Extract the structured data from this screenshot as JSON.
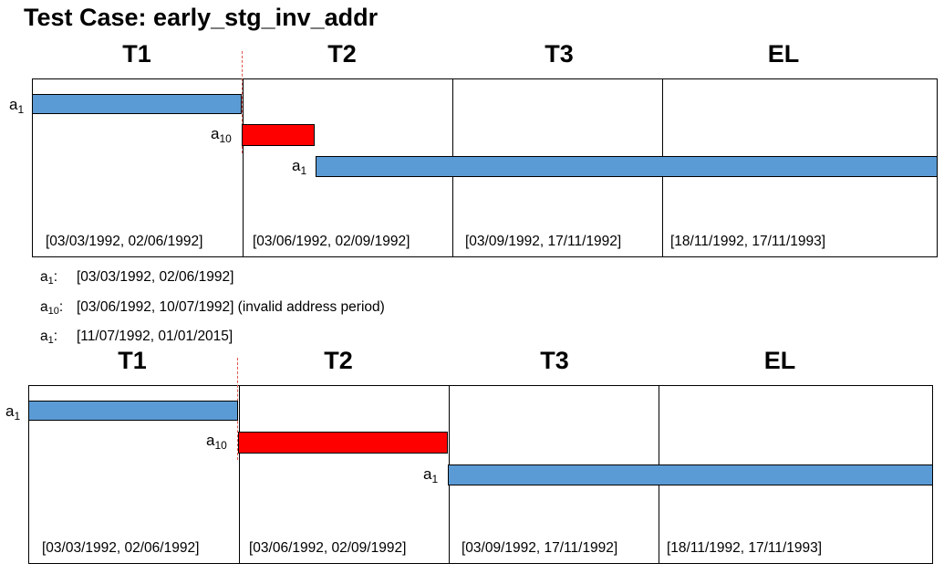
{
  "title": "Test Case: early_stg_inv_addr",
  "columns": [
    "T1",
    "T2",
    "T3",
    "EL"
  ],
  "periods": [
    "[03/03/1992, 02/06/1992]",
    "[03/06/1992, 02/09/1992]",
    "[03/09/1992, 17/11/1992]",
    "[18/11/1992, 17/11/1993]"
  ],
  "bar_labels": {
    "first_base": "a",
    "first_sub": "1",
    "second_base": "a",
    "second_sub": "10",
    "third_base": "a",
    "third_sub": "1"
  },
  "notes": [
    {
      "base": "a",
      "sub": "1",
      "text": "[03/03/1992, 02/06/1992]"
    },
    {
      "base": "a",
      "sub": "10",
      "text": "[03/06/1992, 10/07/1992] (invalid address period)"
    },
    {
      "base": "a",
      "sub": "1",
      "text": "[11/07/1992, 01/01/2015]"
    }
  ],
  "colors": {
    "address_bar": "#5b9bd5",
    "invalid_bar": "#ff0000",
    "marker": "#e0554c"
  }
}
